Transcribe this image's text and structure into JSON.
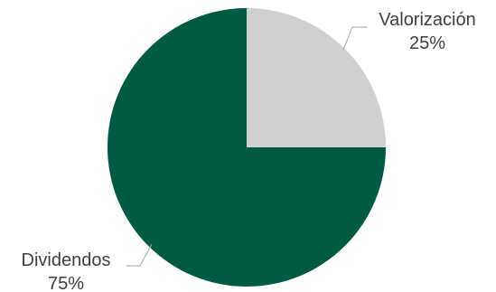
{
  "chart_data": {
    "type": "pie",
    "slices": [
      {
        "label": "Valorización",
        "value": 25,
        "display": "25%",
        "color": "#d0d0d0"
      },
      {
        "label": "Dividendos",
        "value": 75,
        "display": "75%",
        "color": "#025a42"
      }
    ],
    "start_angle": "12 o'clock",
    "direction": "clockwise",
    "legend": "none"
  }
}
